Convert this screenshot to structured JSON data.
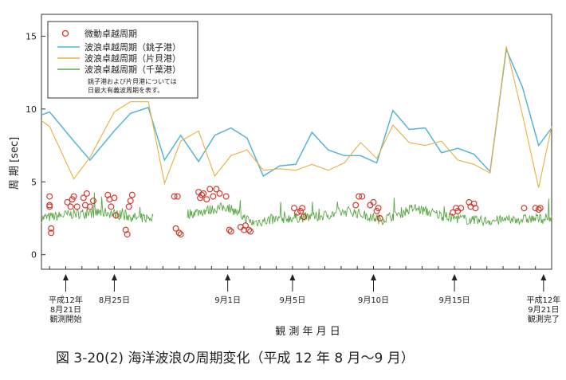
{
  "chart_data": {
    "type": "line",
    "ylabel": "周 期 [sec]",
    "xlabel": "観 測 年 月 日",
    "caption": "図 3-20(2)  海洋波浪の周期変化（平成 12 年 8 月～9 月）",
    "ylim": [
      -1,
      16.5
    ],
    "yticks": [
      0,
      5,
      10,
      15
    ],
    "xlim": [
      0,
      31.5
    ],
    "grid": false,
    "legend_position": "top-left",
    "legend": {
      "entries": [
        "微動卓越周期",
        "波浪卓越周期（銚子港）",
        "波浪卓越周期（片貝港）",
        "波浪卓越周期（千葉港）"
      ],
      "note_line1": "銚子港および片貝港については",
      "note_line2": "日最大有義波周期を表す。"
    },
    "annotations": [
      {
        "x": 1.5,
        "lines": [
          "平成12年",
          "8月21日",
          "観測開始"
        ]
      },
      {
        "x": 4.5,
        "lines": [
          "8月25日"
        ]
      },
      {
        "x": 11.5,
        "lines": [
          "9月1日"
        ]
      },
      {
        "x": 15.5,
        "lines": [
          "9月5日"
        ]
      },
      {
        "x": 20.5,
        "lines": [
          "9月10日"
        ]
      },
      {
        "x": 25.5,
        "lines": [
          "9月15日"
        ]
      },
      {
        "x": 31.0,
        "lines": [
          "平成12年",
          "9月21日",
          "観測完了"
        ]
      }
    ],
    "series": [
      {
        "name": "波浪卓越周期（銚子港）",
        "color": "#55b5d5",
        "x": [
          0,
          0.5,
          2,
          3,
          4.5,
          5.5,
          6.6,
          7.6,
          8.6,
          9.7,
          10.7,
          11.7,
          12.7,
          13.7,
          14.7,
          15.7,
          16.7,
          17.7,
          18.7,
          19.7,
          20.7,
          21.7,
          22.7,
          23.7,
          24.7,
          25.7,
          26.7,
          27.7,
          28.7,
          29.7,
          30.7,
          31.5
        ],
        "y": [
          9.6,
          9.8,
          7.8,
          6.5,
          8.5,
          9.7,
          10.1,
          6.5,
          8.2,
          6.4,
          8.2,
          8.7,
          8.0,
          5.4,
          6.1,
          6.2,
          8.4,
          7.2,
          6.8,
          6.8,
          6.3,
          9.9,
          8.6,
          8.7,
          7.0,
          7.3,
          6.9,
          5.7,
          14.1,
          11.5,
          7.5,
          8.7
        ]
      },
      {
        "name": "波浪卓越周期（片貝港）",
        "color": "#e8b040",
        "x": [
          0,
          0.5,
          2,
          3,
          4.5,
          5.5,
          6.6,
          7.6,
          8.6,
          9.7,
          10.7,
          11.7,
          12.7,
          13.7,
          14.7,
          15.7,
          16.7,
          17.7,
          18.7,
          19.7,
          20.7,
          21.7,
          22.7,
          23.7,
          24.7,
          25.7,
          26.7,
          27.7,
          28.7,
          29.7,
          30.7,
          31.5
        ],
        "y": [
          9.2,
          8.8,
          5.2,
          6.7,
          9.8,
          10.5,
          10.5,
          4.9,
          7.8,
          8.5,
          5.4,
          6.8,
          7.2,
          5.8,
          5.9,
          5.8,
          6.2,
          5.8,
          6.3,
          7.7,
          6.6,
          8.9,
          7.7,
          7.5,
          7.8,
          6.5,
          6.2,
          5.6,
          14.3,
          9.6,
          4.6,
          8.8
        ]
      }
    ],
    "chiba_band": {
      "name": "波浪卓越周期（千葉港）",
      "color": "#5aa845",
      "x": [
        0,
        2,
        4,
        6,
        8,
        10,
        11.5,
        13,
        15,
        17,
        19,
        21,
        23,
        25,
        27,
        29,
        31.5
      ],
      "y": [
        2.5,
        2.8,
        2.9,
        2.5,
        2.6,
        3.0,
        3.3,
        2.2,
        2.5,
        2.6,
        3.0,
        2.4,
        3.2,
        2.6,
        2.3,
        2.4,
        2.5
      ],
      "noise_amplitude": 0.35,
      "gap": [
        6.9,
        9.0
      ]
    },
    "microtremor": {
      "name": "微動卓越周期",
      "color": "#d43a2e",
      "points": [
        [
          0.5,
          4.0
        ],
        [
          0.5,
          3.4
        ],
        [
          0.5,
          3.3
        ],
        [
          0.6,
          1.8
        ],
        [
          0.6,
          1.5
        ],
        [
          1.6,
          3.6
        ],
        [
          1.8,
          3.3
        ],
        [
          1.9,
          3.8
        ],
        [
          2.0,
          4.0
        ],
        [
          2.2,
          3.3
        ],
        [
          2.6,
          3.9
        ],
        [
          2.7,
          3.4
        ],
        [
          2.8,
          4.2
        ],
        [
          3.0,
          3.3
        ],
        [
          3.2,
          3.7
        ],
        [
          4.1,
          4.1
        ],
        [
          4.2,
          3.8
        ],
        [
          4.3,
          3.3
        ],
        [
          4.5,
          3.9
        ],
        [
          4.6,
          2.7
        ],
        [
          5.2,
          1.7
        ],
        [
          5.3,
          1.4
        ],
        [
          5.4,
          3.3
        ],
        [
          5.5,
          3.7
        ],
        [
          5.6,
          4.1
        ],
        [
          8.2,
          4.0
        ],
        [
          8.4,
          4.0
        ],
        [
          8.3,
          1.8
        ],
        [
          8.5,
          1.5
        ],
        [
          8.6,
          1.4
        ],
        [
          9.7,
          4.3
        ],
        [
          9.8,
          3.9
        ],
        [
          9.9,
          4.1
        ],
        [
          10.0,
          4.2
        ],
        [
          10.2,
          3.8
        ],
        [
          10.4,
          4.5
        ],
        [
          10.6,
          4.0
        ],
        [
          10.8,
          4.5
        ],
        [
          11.0,
          4.2
        ],
        [
          11.4,
          4.0
        ],
        [
          11.6,
          1.7
        ],
        [
          11.7,
          1.6
        ],
        [
          12.3,
          1.9
        ],
        [
          12.5,
          1.7
        ],
        [
          12.6,
          2.0
        ],
        [
          12.8,
          1.7
        ],
        [
          12.9,
          1.6
        ],
        [
          15.6,
          3.2
        ],
        [
          15.8,
          2.9
        ],
        [
          16.0,
          3.0
        ],
        [
          16.1,
          3.2
        ],
        [
          16.2,
          2.6
        ],
        [
          19.4,
          3.4
        ],
        [
          19.6,
          4.0
        ],
        [
          19.8,
          4.0
        ],
        [
          20.3,
          3.4
        ],
        [
          20.5,
          3.6
        ],
        [
          20.7,
          3.0
        ],
        [
          20.8,
          3.2
        ],
        [
          20.9,
          2.5
        ],
        [
          25.4,
          2.9
        ],
        [
          25.6,
          3.2
        ],
        [
          25.7,
          3.0
        ],
        [
          25.9,
          3.2
        ],
        [
          26.4,
          3.6
        ],
        [
          26.5,
          3.3
        ],
        [
          26.7,
          3.5
        ],
        [
          26.8,
          3.2
        ],
        [
          29.8,
          3.2
        ],
        [
          30.5,
          3.2
        ],
        [
          30.7,
          3.1
        ],
        [
          30.8,
          3.2
        ]
      ]
    }
  }
}
